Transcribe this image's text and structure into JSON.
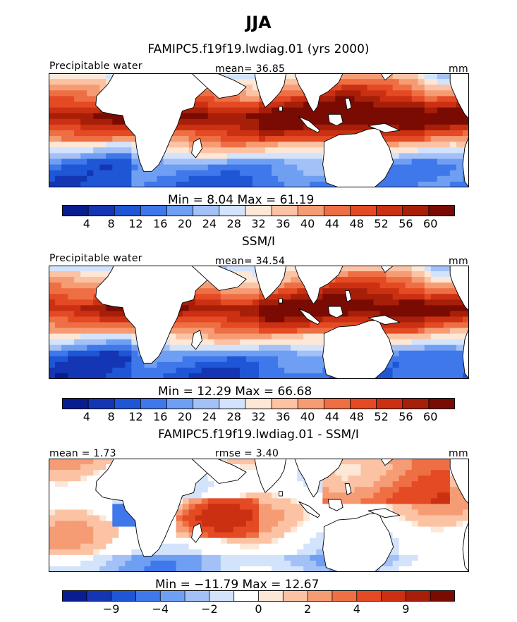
{
  "title": "JJA",
  "panels": [
    {
      "subtitle": "FAMIPC5.f19f19.lwdiag.01 (yrs 2000)",
      "left_label": "Precipitable water",
      "center_label": "mean=  36.85",
      "right_label": "mm",
      "minmax": "Min =    8.04  Max =   61.19",
      "colorbar_labels": [
        "4",
        "8",
        "12",
        "16",
        "20",
        "24",
        "28",
        "32",
        "36",
        "40",
        "44",
        "48",
        "52",
        "56",
        "60"
      ]
    },
    {
      "subtitle": "SSM/I",
      "left_label": "Precipitable water",
      "center_label": "mean=  34.54",
      "right_label": "mm",
      "minmax": "Min =   12.29  Max =   66.68",
      "colorbar_labels": [
        "4",
        "8",
        "12",
        "16",
        "20",
        "24",
        "28",
        "32",
        "36",
        "40",
        "44",
        "48",
        "52",
        "56",
        "60"
      ]
    },
    {
      "subtitle": "FAMIPC5.f19f19.lwdiag.01 - SSM/I",
      "left_label": "mean =    1.73",
      "center_label": "rmse =    3.40",
      "right_label": "mm",
      "minmax": "Min = −11.79  Max =   12.67",
      "colorbar_labels": [
        "−9",
        "−4",
        "−2",
        "0",
        "2",
        "4",
        "9"
      ]
    }
  ],
  "colors": {
    "abs_scale": [
      "#081d8f",
      "#1436b4",
      "#1e56d6",
      "#3f78ea",
      "#6f9ff2",
      "#a3c1f6",
      "#d2e3fb",
      "#fde7d6",
      "#fbc3a4",
      "#f69c74",
      "#ef6f45",
      "#e44a23",
      "#cc3012",
      "#a71f09",
      "#7a0b03"
    ],
    "diff_scale": [
      "#081d8f",
      "#1436b4",
      "#1e56d6",
      "#3f78ea",
      "#6f9ff2",
      "#a3c1f6",
      "#d2e3fb",
      "#ffffff",
      "#fde7d6",
      "#fbc3a4",
      "#f69c74",
      "#ef6f45",
      "#e44a23",
      "#cc3012",
      "#a71f09",
      "#7a0b03"
    ],
    "land": "#ffffff",
    "coast": "#000000"
  }
}
